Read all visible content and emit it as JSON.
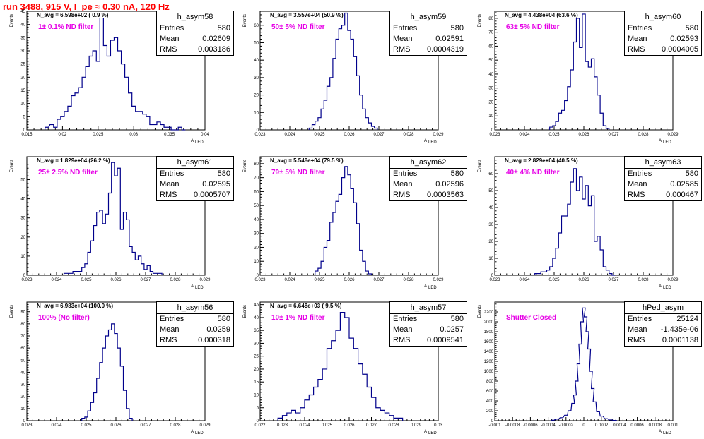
{
  "page_title": "run 3488,   915 V, I_pe ≈ 0.30 nA, 120 Hz",
  "colors": {
    "title": "#ff0000",
    "histogram": "#00008b",
    "filter_text": "#e600e6"
  },
  "chart_data": [
    {
      "type": "histogram",
      "name": "h_asym58",
      "stats": {
        "entries_label": "Entries",
        "entries": "580",
        "mean_label": "Mean",
        "mean": "0.02609",
        "rms_label": "RMS",
        "rms": "0.003186"
      },
      "n_avg": "N_avg = 6.598e+02 (  0.9 %)",
      "annotation": "1± 0.1% ND filter",
      "xlabel": "A",
      "xlabel_sub": "LED",
      "ylabel": "Events",
      "xlim": [
        0.015,
        0.04
      ],
      "ylim": [
        0,
        45
      ],
      "grid": false,
      "xticks": [
        "0.015",
        "0.02",
        "0.025",
        "0.03",
        "0.035",
        "0.04"
      ],
      "yticks": [
        "0",
        "5",
        "10",
        "15",
        "20",
        "25",
        "30",
        "35",
        "40",
        "45"
      ],
      "x": [
        0.0178,
        0.0185,
        0.019,
        0.0195,
        0.02,
        0.0205,
        0.021,
        0.0215,
        0.022,
        0.0225,
        0.023,
        0.0235,
        0.024,
        0.0245,
        0.025,
        0.0255,
        0.026,
        0.0265,
        0.027,
        0.0275,
        0.028,
        0.0285,
        0.029,
        0.0295,
        0.03,
        0.0305,
        0.031,
        0.0315,
        0.032,
        0.0325,
        0.033,
        0.0335,
        0.034,
        0.0345,
        0.035,
        0.0355,
        0.036,
        0.0365,
        0.037
      ],
      "values": [
        1,
        2,
        1,
        4,
        5,
        7,
        9,
        13,
        14,
        16,
        20,
        24,
        28,
        30,
        26,
        44,
        32,
        28,
        34,
        35,
        30,
        25,
        20,
        14,
        9,
        7,
        7,
        6,
        5,
        2,
        2,
        3,
        2,
        1,
        1,
        0,
        0,
        1,
        0
      ]
    },
    {
      "type": "histogram",
      "name": "h_asym59",
      "stats": {
        "entries_label": "Entries",
        "entries": "580",
        "mean_label": "Mean",
        "mean": "0.02591",
        "rms_label": "RMS",
        "rms": "0.0004319"
      },
      "n_avg": "N_avg = 3.557e+04 (50.9 %)",
      "annotation": "50± 5% ND filter",
      "xlabel": "A",
      "xlabel_sub": "LED",
      "ylabel": "Events",
      "xlim": [
        0.023,
        0.029
      ],
      "ylim": [
        0,
        68
      ],
      "grid": false,
      "xticks": [
        "0.023",
        "0.024",
        "0.025",
        "0.026",
        "0.027",
        "0.028",
        "0.029"
      ],
      "yticks": [
        "0",
        "10",
        "20",
        "30",
        "40",
        "50",
        "60"
      ],
      "x": [
        0.0247,
        0.0248,
        0.0249,
        0.025,
        0.0251,
        0.0252,
        0.0253,
        0.0254,
        0.0255,
        0.0256,
        0.0257,
        0.0258,
        0.0259,
        0.026,
        0.0261,
        0.0262,
        0.0263,
        0.0264,
        0.0265,
        0.0266,
        0.0267,
        0.0268,
        0.0269
      ],
      "values": [
        1,
        3,
        5,
        7,
        12,
        17,
        25,
        30,
        41,
        52,
        58,
        60,
        67,
        57,
        52,
        42,
        31,
        20,
        12,
        7,
        4,
        2,
        1
      ]
    },
    {
      "type": "histogram",
      "name": "h_asym60",
      "stats": {
        "entries_label": "Entries",
        "entries": "580",
        "mean_label": "Mean",
        "mean": "0.02593",
        "rms_label": "RMS",
        "rms": "0.0004005"
      },
      "n_avg": "N_avg = 4.438e+04 (63.6 %)",
      "annotation": "63± 5% ND filter",
      "xlabel": "A",
      "xlabel_sub": "LED",
      "ylabel": "Events",
      "xlim": [
        0.023,
        0.029
      ],
      "ylim": [
        0,
        85
      ],
      "grid": false,
      "xticks": [
        "0.023",
        "0.024",
        "0.025",
        "0.026",
        "0.027",
        "0.028",
        "0.029"
      ],
      "yticks": [
        "0",
        "10",
        "20",
        "30",
        "40",
        "50",
        "60",
        "70",
        "80"
      ],
      "x": [
        0.0249,
        0.025,
        0.0251,
        0.0252,
        0.0253,
        0.0254,
        0.0255,
        0.0256,
        0.0257,
        0.0258,
        0.0259,
        0.026,
        0.0261,
        0.0262,
        0.0263,
        0.0264,
        0.0265,
        0.0266,
        0.0267,
        0.0268
      ],
      "values": [
        2,
        3,
        6,
        12,
        14,
        21,
        31,
        43,
        63,
        80,
        59,
        83,
        49,
        45,
        51,
        38,
        25,
        12,
        3,
        1
      ]
    },
    {
      "type": "histogram",
      "name": "h_asym61",
      "stats": {
        "entries_label": "Entries",
        "entries": "580",
        "mean_label": "Mean",
        "mean": "0.02595",
        "rms_label": "RMS",
        "rms": "0.0005707"
      },
      "n_avg": "N_avg = 1.829e+04 (26.2 %)",
      "annotation": "25± 2.5% ND filter",
      "xlabel": "A",
      "xlabel_sub": "LED",
      "ylabel": "Events",
      "xlim": [
        0.023,
        0.029
      ],
      "ylim": [
        0,
        62
      ],
      "grid": false,
      "xticks": [
        "0.023",
        "0.024",
        "0.025",
        "0.026",
        "0.027",
        "0.028",
        "0.029"
      ],
      "yticks": [
        "0",
        "10",
        "20",
        "30",
        "40",
        "50"
      ],
      "x": [
        0.0243,
        0.0244,
        0.0245,
        0.0246,
        0.0247,
        0.0248,
        0.0249,
        0.025,
        0.0251,
        0.0252,
        0.0253,
        0.0254,
        0.0255,
        0.0256,
        0.0257,
        0.0258,
        0.0259,
        0.026,
        0.0261,
        0.0262,
        0.0263,
        0.0264,
        0.0265,
        0.0266,
        0.0267,
        0.0268,
        0.0269,
        0.027,
        0.0271,
        0.0272,
        0.0273,
        0.0274,
        0.0275
      ],
      "values": [
        1,
        1,
        1,
        2,
        2,
        2,
        4,
        6,
        12,
        18,
        26,
        33,
        34,
        27,
        32,
        43,
        59,
        52,
        56,
        24,
        33,
        29,
        15,
        12,
        8,
        10,
        6,
        3,
        5,
        2,
        1,
        1,
        1
      ]
    },
    {
      "type": "histogram",
      "name": "h_asym62",
      "stats": {
        "entries_label": "Entries",
        "entries": "580",
        "mean_label": "Mean",
        "mean": "0.02596",
        "rms_label": "RMS",
        "rms": "0.0003563"
      },
      "n_avg": "N_avg = 5.548e+04 (79.5 %)",
      "annotation": "79± 5% ND filter",
      "xlabel": "A",
      "xlabel_sub": "LED",
      "ylabel": "Events",
      "xlim": [
        0.023,
        0.029
      ],
      "ylim": [
        0,
        85
      ],
      "grid": false,
      "xticks": [
        "0.023",
        "0.024",
        "0.025",
        "0.026",
        "0.027",
        "0.028",
        "0.029"
      ],
      "yticks": [
        "0",
        "10",
        "20",
        "30",
        "40",
        "50",
        "60",
        "70",
        "80"
      ],
      "x": [
        0.0249,
        0.025,
        0.0251,
        0.0252,
        0.0253,
        0.0254,
        0.0255,
        0.0256,
        0.0257,
        0.0258,
        0.0259,
        0.026,
        0.0261,
        0.0262,
        0.0263,
        0.0264,
        0.0265,
        0.0266,
        0.0267
      ],
      "values": [
        3,
        5,
        10,
        20,
        25,
        38,
        45,
        53,
        58,
        70,
        78,
        72,
        62,
        52,
        37,
        18,
        10,
        3,
        1
      ]
    },
    {
      "type": "histogram",
      "name": "h_asym63",
      "stats": {
        "entries_label": "Entries",
        "entries": "580",
        "mean_label": "Mean",
        "mean": "0.02585",
        "rms_label": "RMS",
        "rms": "0.000467"
      },
      "n_avg": "N_avg = 2.829e+04 (40.5 %)",
      "annotation": "40± 4% ND filter",
      "xlabel": "A",
      "xlabel_sub": "LED",
      "ylabel": "Events",
      "xlim": [
        0.023,
        0.029
      ],
      "ylim": [
        0,
        70
      ],
      "grid": false,
      "xticks": [
        "0.023",
        "0.024",
        "0.025",
        "0.026",
        "0.027",
        "0.028",
        "0.029"
      ],
      "yticks": [
        "0",
        "10",
        "20",
        "30",
        "40",
        "50",
        "60"
      ],
      "x": [
        0.0244,
        0.0245,
        0.0246,
        0.0247,
        0.0248,
        0.0249,
        0.025,
        0.0251,
        0.0252,
        0.0253,
        0.0254,
        0.0255,
        0.0256,
        0.0257,
        0.0258,
        0.0259,
        0.026,
        0.0261,
        0.0262,
        0.0263,
        0.0264,
        0.0265,
        0.0266,
        0.0267,
        0.0268,
        0.0269,
        0.027
      ],
      "values": [
        1,
        1,
        2,
        2,
        3,
        5,
        10,
        16,
        25,
        35,
        35,
        42,
        55,
        63,
        50,
        58,
        45,
        53,
        41,
        47,
        20,
        23,
        15,
        5,
        3,
        1,
        0
      ]
    },
    {
      "type": "histogram",
      "name": "h_asym56",
      "stats": {
        "entries_label": "Entries",
        "entries": "580",
        "mean_label": "Mean",
        "mean": "0.0259",
        "rms_label": "RMS",
        "rms": "0.000318"
      },
      "n_avg": "N_avg = 6.983e+04 (100.0 %)",
      "annotation": "100% (No filter)",
      "xlabel": "A",
      "xlabel_sub": "LED",
      "ylabel": "Events",
      "xlim": [
        0.023,
        0.029
      ],
      "ylim": [
        0,
        98
      ],
      "grid": false,
      "xticks": [
        "0.023",
        "0.024",
        "0.025",
        "0.026",
        "0.027",
        "0.028",
        "0.029"
      ],
      "yticks": [
        "0",
        "10",
        "20",
        "30",
        "40",
        "50",
        "60",
        "70",
        "80",
        "90"
      ],
      "x": [
        0.0249,
        0.025,
        0.0251,
        0.0252,
        0.0253,
        0.0254,
        0.0255,
        0.0256,
        0.0257,
        0.0258,
        0.0259,
        0.026,
        0.0261,
        0.0262,
        0.0263,
        0.0264,
        0.0265
      ],
      "values": [
        2,
        3,
        8,
        15,
        23,
        35,
        48,
        60,
        70,
        75,
        80,
        72,
        60,
        45,
        25,
        10,
        2
      ]
    },
    {
      "type": "histogram",
      "name": "h_asym57",
      "stats": {
        "entries_label": "Entries",
        "entries": "580",
        "mean_label": "Mean",
        "mean": "0.0257",
        "rms_label": "RMS",
        "rms": "0.0009541"
      },
      "n_avg": "N_avg = 6.648e+03 (  9.5 %)",
      "annotation": "10± 1% ND filter",
      "xlabel": "A",
      "xlabel_sub": "LED",
      "ylabel": "Events",
      "xlim": [
        0.022,
        0.03
      ],
      "ylim": [
        0,
        46
      ],
      "grid": false,
      "xticks": [
        "0.022",
        "0.023",
        "0.024",
        "0.025",
        "0.026",
        "0.027",
        "0.028",
        "0.029",
        "0.03"
      ],
      "yticks": [
        "0",
        "5",
        "10",
        "15",
        "20",
        "25",
        "30",
        "35",
        "40",
        "45"
      ],
      "x": [
        0.0229,
        0.0231,
        0.0233,
        0.0235,
        0.0237,
        0.0239,
        0.0241,
        0.0243,
        0.0245,
        0.0247,
        0.0249,
        0.0251,
        0.0253,
        0.0255,
        0.0257,
        0.0259,
        0.0261,
        0.0263,
        0.0265,
        0.0267,
        0.0269,
        0.0271,
        0.0273,
        0.0275,
        0.0277,
        0.0279,
        0.0281,
        0.0283
      ],
      "values": [
        1,
        2,
        3,
        4,
        3,
        5,
        8,
        10,
        13,
        16,
        20,
        28,
        31,
        35,
        42,
        40,
        32,
        28,
        22,
        18,
        13,
        9,
        5,
        4,
        3,
        2,
        1,
        1
      ]
    },
    {
      "type": "histogram",
      "name": "hPed_asym",
      "stats": {
        "entries_label": "Entries",
        "entries": "25124",
        "mean_label": "Mean",
        "mean": "-1.435e-06",
        "rms_label": "RMS",
        "rms": "0.0001138"
      },
      "n_avg": "",
      "annotation": "Shutter Closed",
      "xlabel": "A",
      "xlabel_sub": "LED",
      "ylabel": "Events",
      "xlim": [
        -0.001,
        0.001
      ],
      "ylim": [
        0,
        2400
      ],
      "grid": false,
      "xticks": [
        "-0.001",
        "-0.0008",
        "-0.0006",
        "-0.0004",
        "-0.0002",
        "0",
        "0.0002",
        "0.0004",
        "0.0006",
        "0.0008",
        "0.001"
      ],
      "yticks": [
        "0",
        "200",
        "400",
        "600",
        "800",
        "1000",
        "1200",
        "1400",
        "1600",
        "1800",
        "2000",
        "2200"
      ],
      "x": [
        -0.00035,
        -0.0003,
        -0.00025,
        -0.0002,
        -0.00016,
        -0.00012,
        -0.0001,
        -8e-05,
        -6e-05,
        -4e-05,
        -2e-05,
        0,
        2e-05,
        4e-05,
        6e-05,
        8e-05,
        0.0001,
        0.00012,
        0.00016,
        0.0002,
        0.00025,
        0.0003,
        0.00035
      ],
      "values": [
        10,
        30,
        60,
        110,
        200,
        350,
        520,
        800,
        1150,
        1550,
        2000,
        2280,
        2100,
        1800,
        1450,
        1000,
        650,
        380,
        180,
        90,
        40,
        15,
        5
      ]
    }
  ]
}
